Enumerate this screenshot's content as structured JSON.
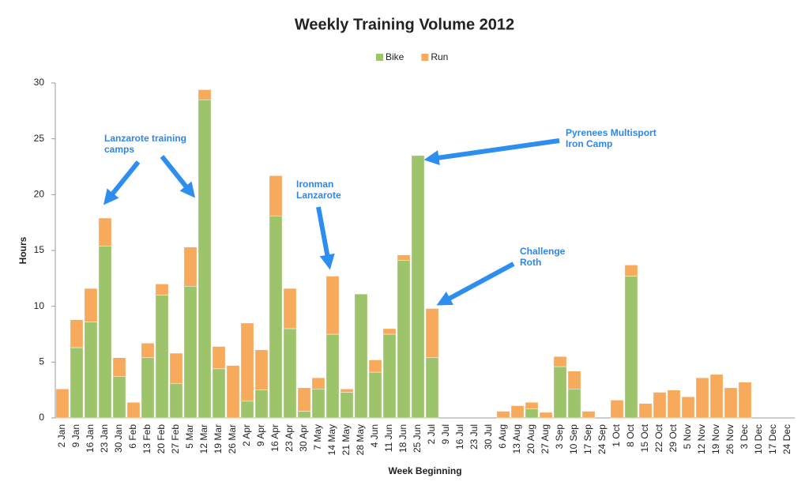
{
  "chart_data": {
    "type": "stacked-bar",
    "title": "Weekly Training Volume 2012",
    "x_label": "Week Beginning",
    "y_label": "Hours",
    "categories": [
      "2 Jan",
      "9 Jan",
      "16 Jan",
      "23 Jan",
      "30 Jan",
      "6 Feb",
      "13 Feb",
      "20 Feb",
      "27 Feb",
      "5 Mar",
      "12 Mar",
      "19 Mar",
      "26 Mar",
      "2 Apr",
      "9 Apr",
      "16 Apr",
      "23 Apr",
      "30 Apr",
      "7 May",
      "14 May",
      "21 May",
      "28 May",
      "4 Jun",
      "11 Jun",
      "18 Jun",
      "25 Jun",
      "2 Jul",
      "9 Jul",
      "16 Jul",
      "23 Jul",
      "30 Jul",
      "6 Aug",
      "13 Aug",
      "20 Aug",
      "27 Aug",
      "3 Sep",
      "10 Sep",
      "17 Sep",
      "24 Sep",
      "1 Oct",
      "8 Oct",
      "15 Oct",
      "22 Oct",
      "29 Oct",
      "5 Nov",
      "12 Nov",
      "19 Nov",
      "26 Nov",
      "3 Dec",
      "10 Dec",
      "17 Dec",
      "24 Dec"
    ],
    "series": [
      {
        "name": "Bike",
        "color": "#9dc36b",
        "values": [
          0,
          6.3,
          8.6,
          15.4,
          3.7,
          0,
          5.4,
          11.0,
          3.1,
          11.8,
          28.5,
          4.4,
          0,
          1.5,
          2.5,
          18.1,
          8.0,
          0.6,
          2.6,
          7.5,
          2.3,
          11.1,
          4.1,
          7.5,
          14.1,
          23.5,
          5.4,
          0,
          0,
          0,
          0,
          0,
          0,
          0.8,
          0,
          4.6,
          2.6,
          0,
          0,
          0,
          12.7,
          0,
          0,
          0,
          0,
          0,
          0,
          0,
          0,
          0,
          0,
          0
        ]
      },
      {
        "name": "Run",
        "color": "#f7a95c",
        "values": [
          2.6,
          2.5,
          3.0,
          2.5,
          1.7,
          1.4,
          1.3,
          1.0,
          2.7,
          3.5,
          0.9,
          2.0,
          4.7,
          7.0,
          3.6,
          3.6,
          3.6,
          2.1,
          1.0,
          5.2,
          0.3,
          0,
          1.1,
          0.5,
          0.5,
          0,
          4.4,
          0,
          0,
          0,
          0,
          0.6,
          1.1,
          0.6,
          0.5,
          0.9,
          1.6,
          0.6,
          0,
          1.6,
          1.0,
          1.3,
          2.3,
          2.5,
          1.9,
          3.6,
          3.9,
          2.7,
          3.2,
          0,
          0,
          0
        ]
      }
    ],
    "ylim": [
      0,
      30
    ],
    "yticks": [
      0,
      5,
      10,
      15,
      20,
      25,
      30
    ],
    "grid": false,
    "legend": "top",
    "annotations": [
      {
        "lines": [
          "Lanzarote training",
          "camps"
        ]
      },
      {
        "lines": [
          "Ironman",
          "Lanzarote"
        ]
      },
      {
        "lines": [
          "Pyrenees Multisport",
          "Iron Camp"
        ]
      },
      {
        "lines": [
          "Challenge",
          "Roth"
        ]
      }
    ]
  }
}
